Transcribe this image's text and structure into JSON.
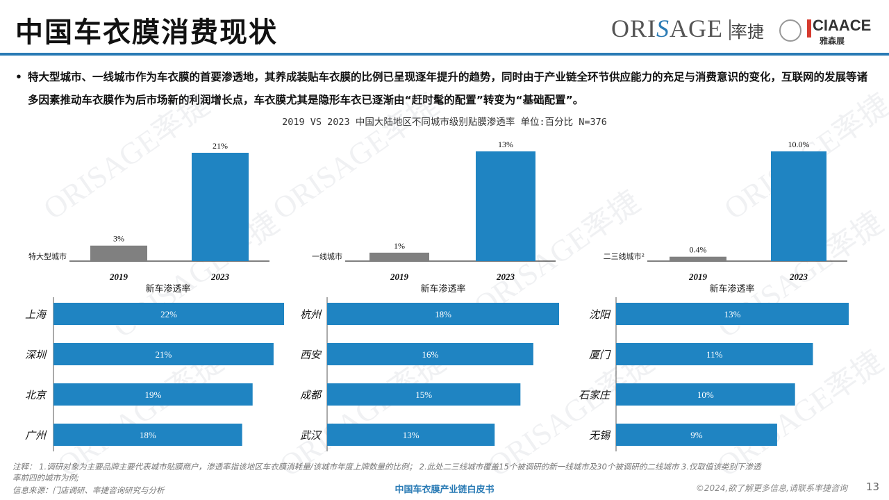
{
  "page": {
    "title": "中国车衣膜消费现状",
    "logo": {
      "brand": "ORISAGE",
      "brand_cn": "率捷",
      "partner": "CIAACE",
      "partner_cn": "雅森展"
    },
    "bullet": "特大型城市、一线城市作为车衣膜的首要渗透地，其养成装贴车衣膜的比例已呈现逐年提升的趋势，同时由于产业链全环节供应能力的充足与消费意识的变化，互联网的发展等诸多因素推动车衣膜作为后市场新的利润增长点，车衣膜尤其是隐形车衣已逐渐由“赶时髦的配置”转变为“基础配置”。",
    "chart_subtitle": "2019 VS 2023 中国大陆地区不同城市级别贴膜渗透率 单位:百分比 N=376",
    "note_line1": "注释：  1.调研对象为主要品牌主要代表城市贴膜商户，渗透率指该地区车衣膜消耗量/该城市年度上牌数量的比例；  2.此处二三线城市覆盖15个被调研的新一线城市及30个被调研的二线城市  3.仅取值该类别下渗透",
    "note_line2": "率前四的城市为例;",
    "source": "信息来源：门店调研、率捷咨询研究与分析",
    "footer_center": "中国车衣膜产业链白皮书",
    "footer_right": "©2024,欲了解更多信息,请联系率捷咨询",
    "page_number": "13",
    "watermark": "ORISAGE率捷"
  },
  "colors": {
    "accent": "#2a7bb5",
    "bar_2023": "#1f84c2",
    "bar_2019": "#808080",
    "hbar": "#1f84c2"
  },
  "chart_data": [
    {
      "type": "bar",
      "label": "特大型城市",
      "categories": [
        "2019",
        "2023"
      ],
      "values": [
        3,
        21
      ],
      "value_labels": [
        "3%",
        "21%"
      ]
    },
    {
      "type": "bar",
      "label": "一线城市",
      "categories": [
        "2019",
        "2023"
      ],
      "values": [
        1,
        13
      ],
      "value_labels": [
        "1%",
        "13%"
      ]
    },
    {
      "type": "bar",
      "label": "二三线城市²",
      "categories": [
        "2019",
        "2023"
      ],
      "values": [
        0.4,
        10.0
      ],
      "value_labels": [
        "0.4%",
        "10.0%"
      ]
    },
    {
      "type": "bar",
      "orientation": "horizontal",
      "title": "新车渗透率",
      "categories": [
        "上海",
        "深圳",
        "北京",
        "广州"
      ],
      "values": [
        22,
        21,
        19,
        18
      ],
      "value_labels": [
        "22%",
        "21%",
        "19%",
        "18%"
      ]
    },
    {
      "type": "bar",
      "orientation": "horizontal",
      "title": "新车渗透率",
      "categories": [
        "杭州",
        "西安",
        "成都",
        "武汉"
      ],
      "values": [
        18,
        16,
        15,
        13
      ],
      "value_labels": [
        "18%",
        "16%",
        "15%",
        "13%"
      ]
    },
    {
      "type": "bar",
      "orientation": "horizontal",
      "title": "新车渗透率",
      "categories": [
        "沈阳",
        "厦门",
        "石家庄",
        "无锡"
      ],
      "values": [
        13,
        11,
        10,
        9
      ],
      "value_labels": [
        "13%",
        "11%",
        "10%",
        "9%"
      ]
    }
  ]
}
